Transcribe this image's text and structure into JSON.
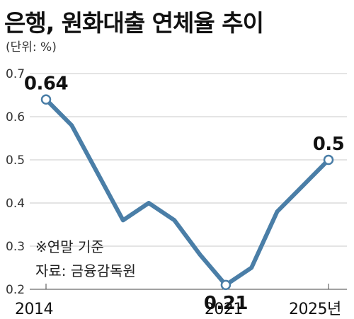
{
  "title": "은행, 원화대출 연체율 추이",
  "unit_label": "(단위: %)",
  "notes": [
    "※연말 기준",
    "자료: 금융감독원"
  ],
  "colors": {
    "line": "#4a7ea7",
    "marker_fill": "#ffffff",
    "grid": "#c8c8c8",
    "axis": "#444444"
  },
  "chart_data": {
    "type": "line",
    "title": "은행, 원화대출 연체율 추이",
    "ylabel": "(단위: %)",
    "ylim": [
      0.2,
      0.7
    ],
    "yticks": [
      "0.7",
      "0.6",
      "0.5",
      "0.4",
      "0.3",
      "0.2"
    ],
    "xlim": [
      2013,
      2025.6
    ],
    "xticks": [
      "2014",
      "2021",
      "2025년"
    ],
    "grid": "horizontal",
    "series": [
      {
        "x": [
          2014,
          2015,
          2016,
          2017,
          2018,
          2019,
          2020,
          2021,
          2022,
          2023,
          2024
        ],
        "values": [
          0.64,
          0.58,
          0.47,
          0.36,
          0.4,
          0.36,
          0.28,
          0.21,
          0.25,
          0.38,
          0.44
        ]
      }
    ],
    "final_point": {
      "x": 2025,
      "value": 0.5
    },
    "labels": [
      {
        "x": 2014,
        "value": 0.64,
        "text": "0.64",
        "position": "above"
      },
      {
        "x": 2021,
        "value": 0.21,
        "text": "0.21",
        "position": "below"
      },
      {
        "x": 2025,
        "value": 0.5,
        "text": "0.5",
        "position": "above"
      }
    ]
  }
}
